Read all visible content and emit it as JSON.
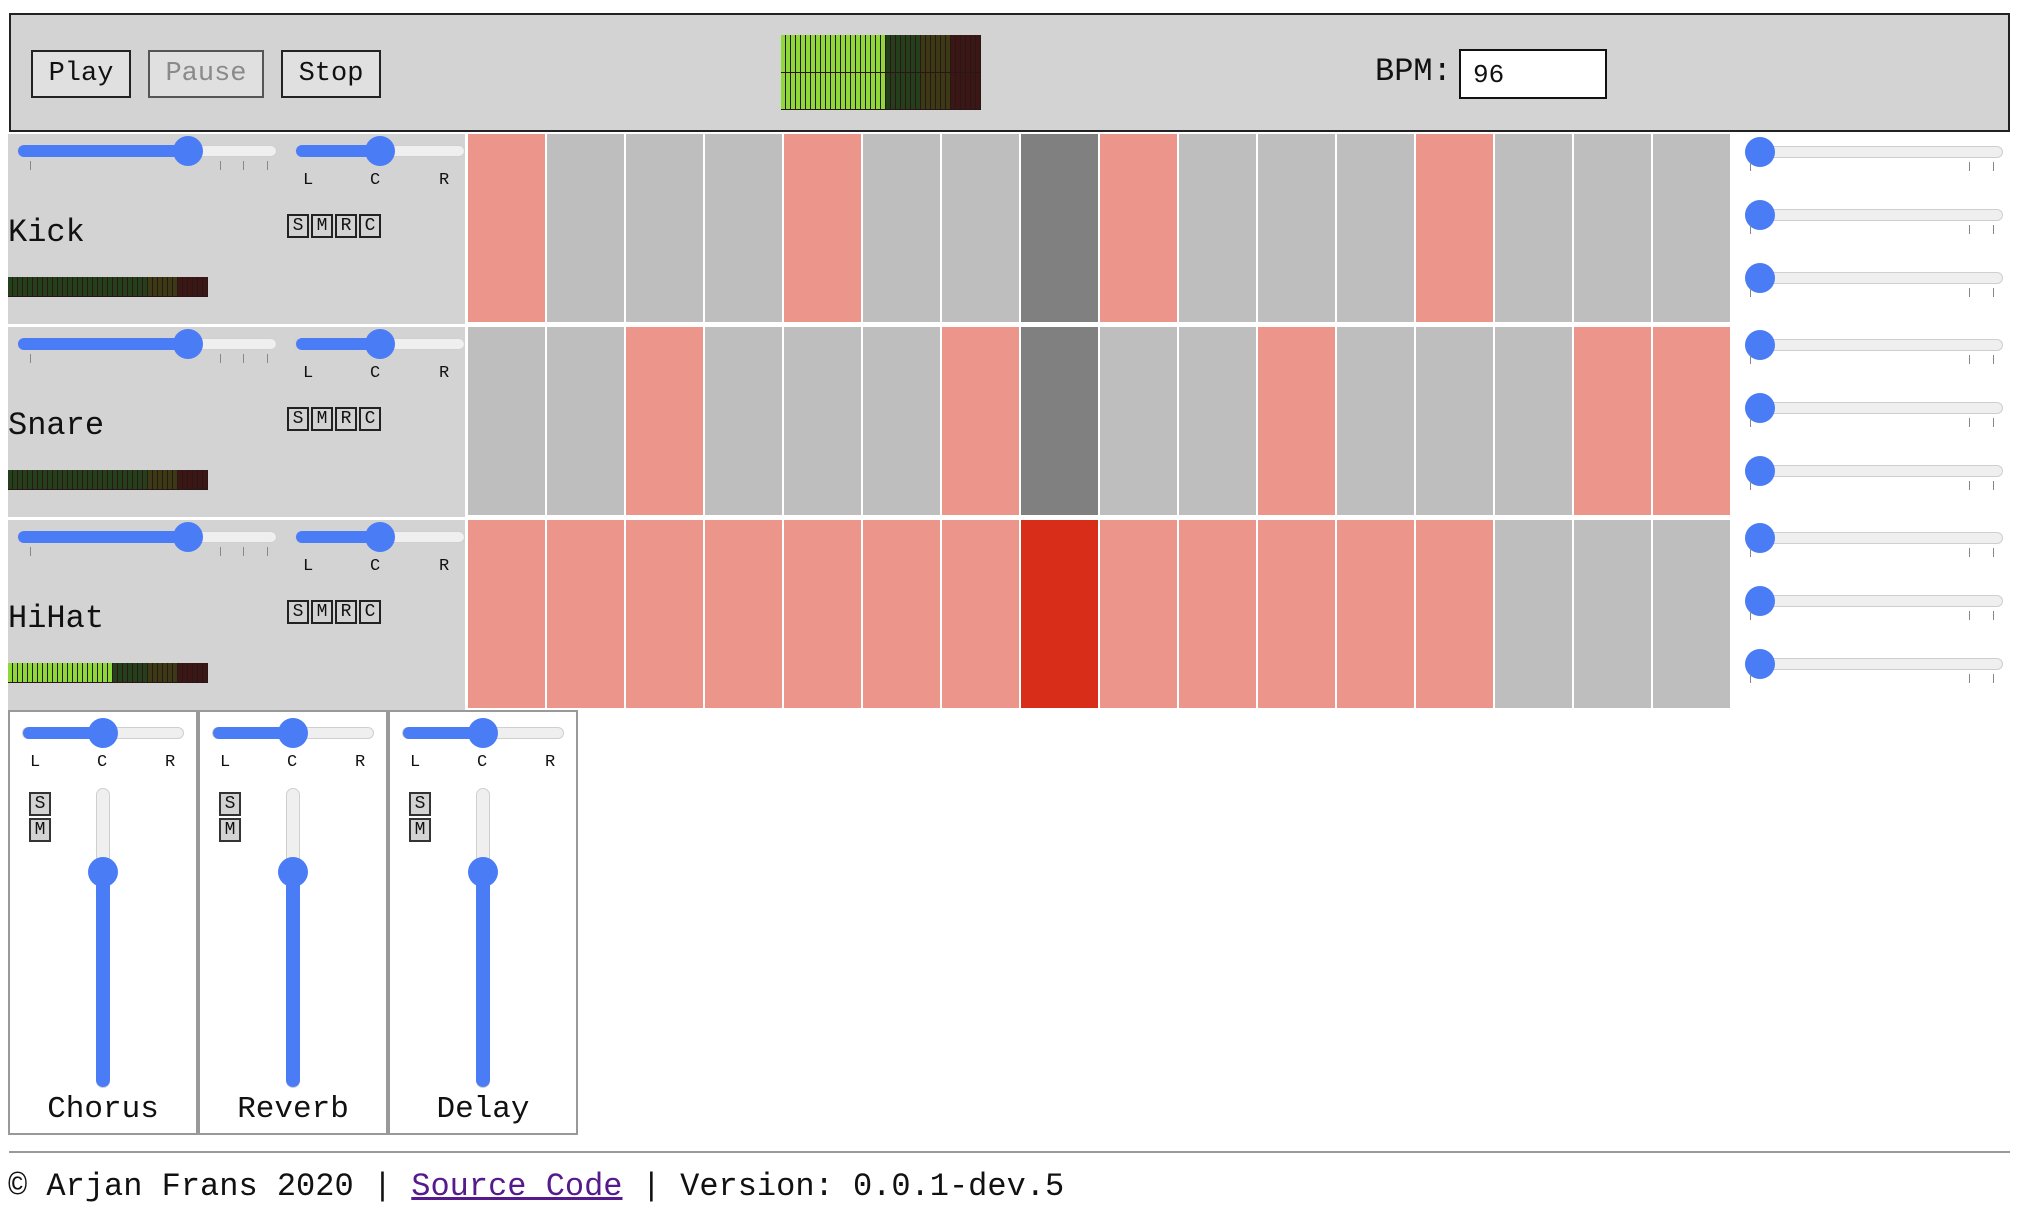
{
  "transport": {
    "play_label": "Play",
    "pause_label": "Pause",
    "stop_label": "Stop",
    "bpm_label": "BPM:",
    "bpm_value": "96",
    "master_meter_level": 0.52
  },
  "tracks": [
    {
      "name": "Kick",
      "volume": 0.68,
      "pan": "C",
      "meter_level": 0.0,
      "steps": [
        1,
        0,
        0,
        0,
        1,
        0,
        0,
        0,
        1,
        0,
        0,
        0,
        1,
        0,
        0,
        0
      ]
    },
    {
      "name": "Snare",
      "volume": 0.68,
      "pan": "C",
      "meter_level": 0.0,
      "steps": [
        0,
        0,
        1,
        0,
        0,
        0,
        1,
        0,
        0,
        0,
        1,
        0,
        0,
        0,
        1,
        1
      ]
    },
    {
      "name": "HiHat",
      "volume": 0.68,
      "pan": "C",
      "meter_level": 0.52,
      "steps": [
        1,
        1,
        1,
        1,
        1,
        1,
        1,
        1,
        1,
        1,
        1,
        1,
        1,
        0,
        0,
        0
      ]
    }
  ],
  "current_step": 8,
  "pan_labels": {
    "left": "L",
    "center": "C",
    "right": "R"
  },
  "track_buttons": [
    "S",
    "M",
    "R",
    "C"
  ],
  "fx_buttons": [
    "S",
    "M"
  ],
  "fx_channels": [
    {
      "name": "Chorus",
      "pan": "C",
      "level": 0.72
    },
    {
      "name": "Reverb",
      "pan": "C",
      "level": 0.72
    },
    {
      "name": "Delay",
      "pan": "C",
      "level": 0.72
    }
  ],
  "footer": {
    "copyright": "© Arjan Frans 2020 | ",
    "source_link": "Source Code",
    "version": " | Version: 0.0.1-dev.5"
  },
  "colors": {
    "step_on": "#ec958a",
    "step_off": "#bebebe",
    "playhead_off": "#808080",
    "playhead_on": "#d82d18",
    "slider": "#4a7cf6",
    "panel": "#d3d3d3"
  }
}
